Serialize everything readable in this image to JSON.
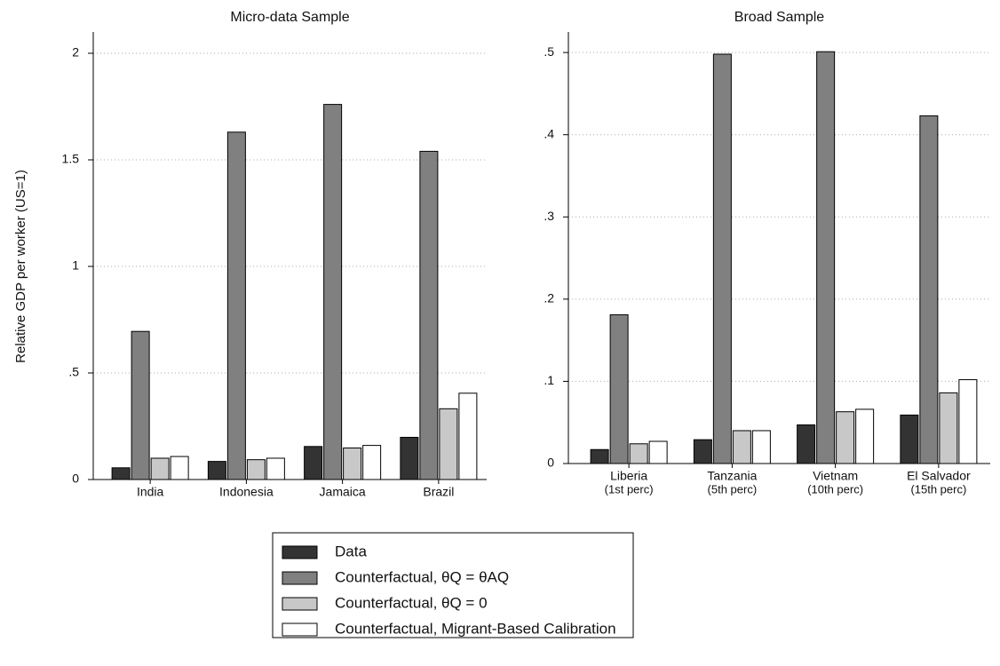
{
  "chart_data": [
    {
      "type": "bar",
      "title": "Micro-data Sample",
      "y_label": "Relative GDP per worker (US=1)",
      "categories": [
        [
          "India"
        ],
        [
          "Indonesia"
        ],
        [
          "Jamaica"
        ],
        [
          "Brazil"
        ]
      ],
      "series": [
        {
          "name": "Data",
          "color": "#333333",
          "values": [
            0.055,
            0.085,
            0.155,
            0.198
          ]
        },
        {
          "name": "Counterfactual, θQ = θAQ",
          "color": "#808080",
          "values": [
            0.695,
            1.63,
            1.76,
            1.54
          ]
        },
        {
          "name": "Counterfactual, θQ = 0",
          "color": "#c8c8c8",
          "values": [
            0.1,
            0.093,
            0.148,
            0.332
          ]
        },
        {
          "name": "Counterfactual, Migrant-Based Calibration",
          "color": "#ffffff",
          "values": [
            0.108,
            0.1,
            0.16,
            0.405
          ]
        }
      ],
      "ylim": [
        0,
        2.1
      ],
      "yticks": [
        0,
        {
          "value": 0.5,
          "label": ".5"
        },
        1,
        1.5,
        2
      ],
      "grid": true
    },
    {
      "type": "bar",
      "title": "Broad Sample",
      "categories": [
        [
          "Liberia",
          "(1st perc)"
        ],
        [
          "Tanzania",
          "(5th perc)"
        ],
        [
          "Vietnam",
          "(10th perc)"
        ],
        [
          "El Salvador",
          "(15th perc)"
        ]
      ],
      "series": [
        {
          "color": "#333333",
          "values": [
            0.017,
            0.029,
            0.047,
            0.059
          ]
        },
        {
          "color": "#808080",
          "values": [
            0.181,
            0.498,
            0.501,
            0.423
          ]
        },
        {
          "color": "#c8c8c8",
          "values": [
            0.024,
            0.04,
            0.063,
            0.086
          ]
        },
        {
          "color": "#ffffff",
          "values": [
            0.027,
            0.04,
            0.066,
            0.102
          ]
        }
      ],
      "ylim": [
        0,
        0.525
      ],
      "yticks": [
        0,
        {
          "value": 0.1,
          "label": ".1"
        },
        {
          "value": 0.2,
          "label": ".2"
        },
        {
          "value": 0.3,
          "label": ".3"
        },
        {
          "value": 0.4,
          "label": ".4"
        },
        {
          "value": 0.5,
          "label": ".5"
        }
      ],
      "grid": true
    }
  ]
}
